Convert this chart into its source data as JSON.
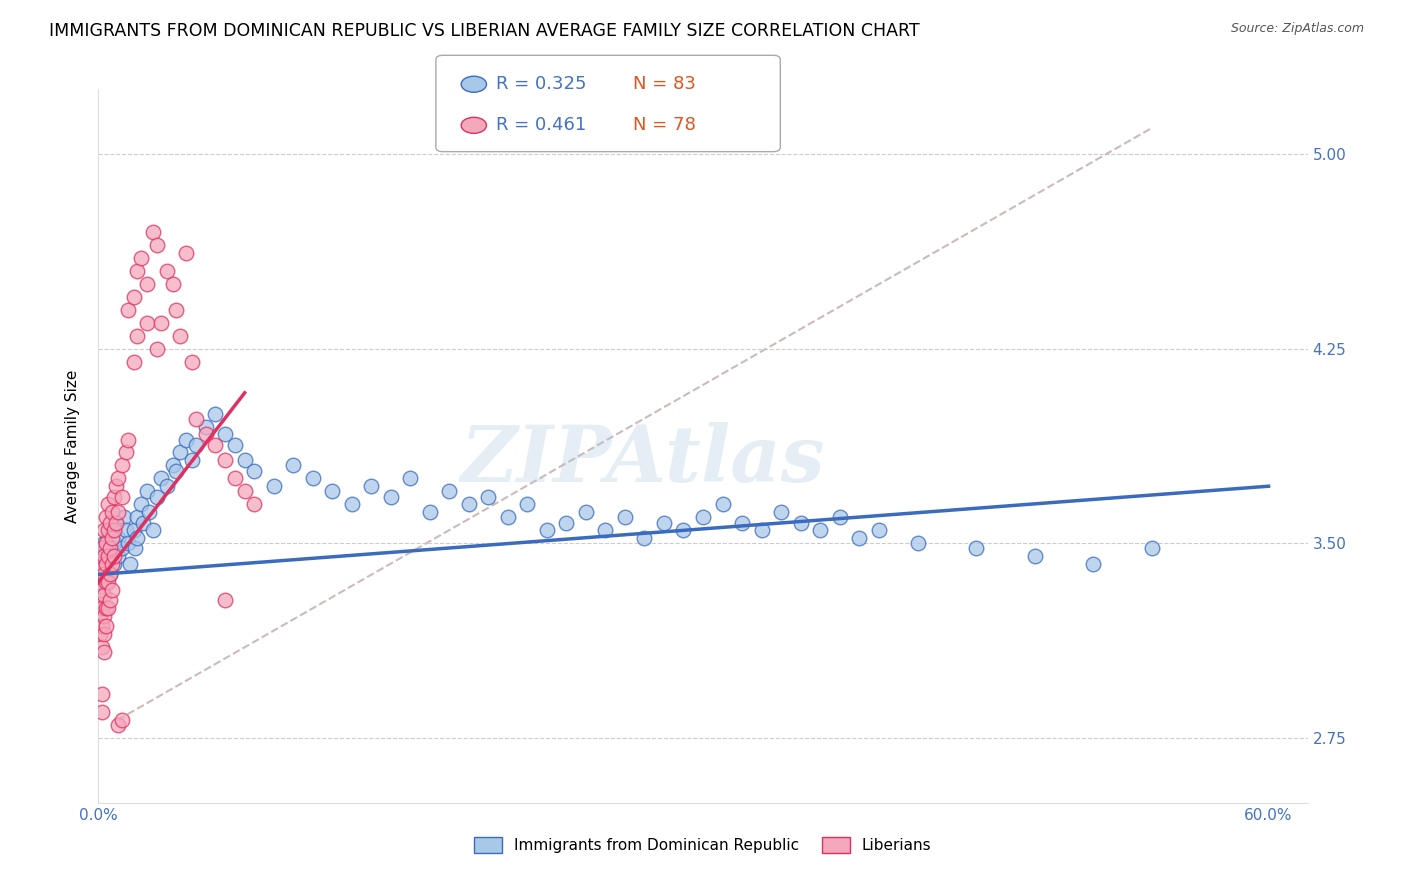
{
  "title": "IMMIGRANTS FROM DOMINICAN REPUBLIC VS LIBERIAN AVERAGE FAMILY SIZE CORRELATION CHART",
  "source": "Source: ZipAtlas.com",
  "ylabel": "Average Family Size",
  "yticks": [
    2.75,
    3.5,
    4.25,
    5.0
  ],
  "xlim": [
    0.0,
    0.62
  ],
  "ylim": [
    2.5,
    5.25
  ],
  "legend_blue_r": "0.325",
  "legend_blue_n": "83",
  "legend_pink_r": "0.461",
  "legend_pink_n": "78",
  "blue_color": "#a8c8e8",
  "pink_color": "#f4a8bc",
  "blue_line_color": "#3a6bbf",
  "pink_line_color": "#e03060",
  "dashed_line_color": "#ccbbbb",
  "watermark": "ZIPAtlas",
  "background_color": "#ffffff",
  "tick_color": "#4472c4",
  "grid_color": "#cccccc",
  "title_fontsize": 12.5,
  "axis_label_fontsize": 11,
  "tick_fontsize": 11,
  "legend_fontsize": 13,
  "blue_scatter": [
    [
      0.001,
      3.42
    ],
    [
      0.002,
      3.45
    ],
    [
      0.002,
      3.38
    ],
    [
      0.003,
      3.5
    ],
    [
      0.003,
      3.35
    ],
    [
      0.004,
      3.48
    ],
    [
      0.004,
      3.4
    ],
    [
      0.005,
      3.52
    ],
    [
      0.005,
      3.43
    ],
    [
      0.006,
      3.46
    ],
    [
      0.006,
      3.38
    ],
    [
      0.007,
      3.55
    ],
    [
      0.008,
      3.5
    ],
    [
      0.008,
      3.42
    ],
    [
      0.009,
      3.58
    ],
    [
      0.01,
      3.45
    ],
    [
      0.01,
      3.52
    ],
    [
      0.012,
      3.48
    ],
    [
      0.013,
      3.6
    ],
    [
      0.014,
      3.55
    ],
    [
      0.015,
      3.5
    ],
    [
      0.016,
      3.42
    ],
    [
      0.018,
      3.55
    ],
    [
      0.019,
      3.48
    ],
    [
      0.02,
      3.6
    ],
    [
      0.02,
      3.52
    ],
    [
      0.022,
      3.65
    ],
    [
      0.023,
      3.58
    ],
    [
      0.025,
      3.7
    ],
    [
      0.026,
      3.62
    ],
    [
      0.028,
      3.55
    ],
    [
      0.03,
      3.68
    ],
    [
      0.032,
      3.75
    ],
    [
      0.035,
      3.72
    ],
    [
      0.038,
      3.8
    ],
    [
      0.04,
      3.78
    ],
    [
      0.042,
      3.85
    ],
    [
      0.045,
      3.9
    ],
    [
      0.048,
      3.82
    ],
    [
      0.05,
      3.88
    ],
    [
      0.055,
      3.95
    ],
    [
      0.06,
      4.0
    ],
    [
      0.065,
      3.92
    ],
    [
      0.07,
      3.88
    ],
    [
      0.075,
      3.82
    ],
    [
      0.08,
      3.78
    ],
    [
      0.09,
      3.72
    ],
    [
      0.1,
      3.8
    ],
    [
      0.11,
      3.75
    ],
    [
      0.12,
      3.7
    ],
    [
      0.13,
      3.65
    ],
    [
      0.14,
      3.72
    ],
    [
      0.15,
      3.68
    ],
    [
      0.16,
      3.75
    ],
    [
      0.17,
      3.62
    ],
    [
      0.18,
      3.7
    ],
    [
      0.19,
      3.65
    ],
    [
      0.2,
      3.68
    ],
    [
      0.21,
      3.6
    ],
    [
      0.22,
      3.65
    ],
    [
      0.23,
      3.55
    ],
    [
      0.24,
      3.58
    ],
    [
      0.25,
      3.62
    ],
    [
      0.26,
      3.55
    ],
    [
      0.27,
      3.6
    ],
    [
      0.28,
      3.52
    ],
    [
      0.29,
      3.58
    ],
    [
      0.3,
      3.55
    ],
    [
      0.31,
      3.6
    ],
    [
      0.32,
      3.65
    ],
    [
      0.33,
      3.58
    ],
    [
      0.34,
      3.55
    ],
    [
      0.35,
      3.62
    ],
    [
      0.36,
      3.58
    ],
    [
      0.37,
      3.55
    ],
    [
      0.38,
      3.6
    ],
    [
      0.39,
      3.52
    ],
    [
      0.4,
      3.55
    ],
    [
      0.42,
      3.5
    ],
    [
      0.45,
      3.48
    ],
    [
      0.48,
      3.45
    ],
    [
      0.51,
      3.42
    ],
    [
      0.54,
      3.48
    ]
  ],
  "pink_scatter": [
    [
      0.001,
      3.42
    ],
    [
      0.001,
      3.35
    ],
    [
      0.001,
      3.28
    ],
    [
      0.001,
      3.22
    ],
    [
      0.001,
      3.15
    ],
    [
      0.002,
      3.48
    ],
    [
      0.002,
      3.4
    ],
    [
      0.002,
      3.32
    ],
    [
      0.002,
      3.25
    ],
    [
      0.002,
      3.18
    ],
    [
      0.002,
      3.1
    ],
    [
      0.002,
      2.92
    ],
    [
      0.002,
      2.85
    ],
    [
      0.003,
      3.55
    ],
    [
      0.003,
      3.45
    ],
    [
      0.003,
      3.38
    ],
    [
      0.003,
      3.3
    ],
    [
      0.003,
      3.22
    ],
    [
      0.003,
      3.15
    ],
    [
      0.003,
      3.08
    ],
    [
      0.004,
      3.6
    ],
    [
      0.004,
      3.5
    ],
    [
      0.004,
      3.42
    ],
    [
      0.004,
      3.35
    ],
    [
      0.004,
      3.25
    ],
    [
      0.004,
      3.18
    ],
    [
      0.005,
      3.65
    ],
    [
      0.005,
      3.55
    ],
    [
      0.005,
      3.45
    ],
    [
      0.005,
      3.35
    ],
    [
      0.005,
      3.25
    ],
    [
      0.006,
      3.58
    ],
    [
      0.006,
      3.48
    ],
    [
      0.006,
      3.38
    ],
    [
      0.006,
      3.28
    ],
    [
      0.007,
      3.62
    ],
    [
      0.007,
      3.52
    ],
    [
      0.007,
      3.42
    ],
    [
      0.007,
      3.32
    ],
    [
      0.008,
      3.68
    ],
    [
      0.008,
      3.55
    ],
    [
      0.008,
      3.45
    ],
    [
      0.009,
      3.72
    ],
    [
      0.009,
      3.58
    ],
    [
      0.01,
      3.75
    ],
    [
      0.01,
      3.62
    ],
    [
      0.012,
      3.8
    ],
    [
      0.012,
      3.68
    ],
    [
      0.014,
      3.85
    ],
    [
      0.015,
      3.9
    ],
    [
      0.015,
      4.4
    ],
    [
      0.018,
      4.45
    ],
    [
      0.018,
      4.2
    ],
    [
      0.02,
      4.55
    ],
    [
      0.02,
      4.3
    ],
    [
      0.022,
      4.6
    ],
    [
      0.025,
      4.5
    ],
    [
      0.025,
      4.35
    ],
    [
      0.028,
      4.7
    ],
    [
      0.03,
      4.65
    ],
    [
      0.03,
      4.25
    ],
    [
      0.032,
      4.35
    ],
    [
      0.035,
      4.55
    ],
    [
      0.038,
      4.5
    ],
    [
      0.04,
      4.4
    ],
    [
      0.042,
      4.3
    ],
    [
      0.045,
      4.62
    ],
    [
      0.048,
      4.2
    ],
    [
      0.05,
      3.98
    ],
    [
      0.055,
      3.92
    ],
    [
      0.06,
      3.88
    ],
    [
      0.065,
      3.82
    ],
    [
      0.07,
      3.75
    ],
    [
      0.075,
      3.7
    ],
    [
      0.08,
      3.65
    ],
    [
      0.01,
      2.8
    ],
    [
      0.012,
      2.82
    ],
    [
      0.065,
      3.28
    ]
  ],
  "blue_line_x": [
    0.0,
    0.6
  ],
  "blue_line_y": [
    3.38,
    3.72
  ],
  "pink_line_x": [
    0.0,
    0.075
  ],
  "pink_line_y": [
    3.35,
    4.08
  ],
  "dashed_line_x": [
    0.01,
    0.54
  ],
  "dashed_line_y": [
    2.82,
    5.1
  ]
}
